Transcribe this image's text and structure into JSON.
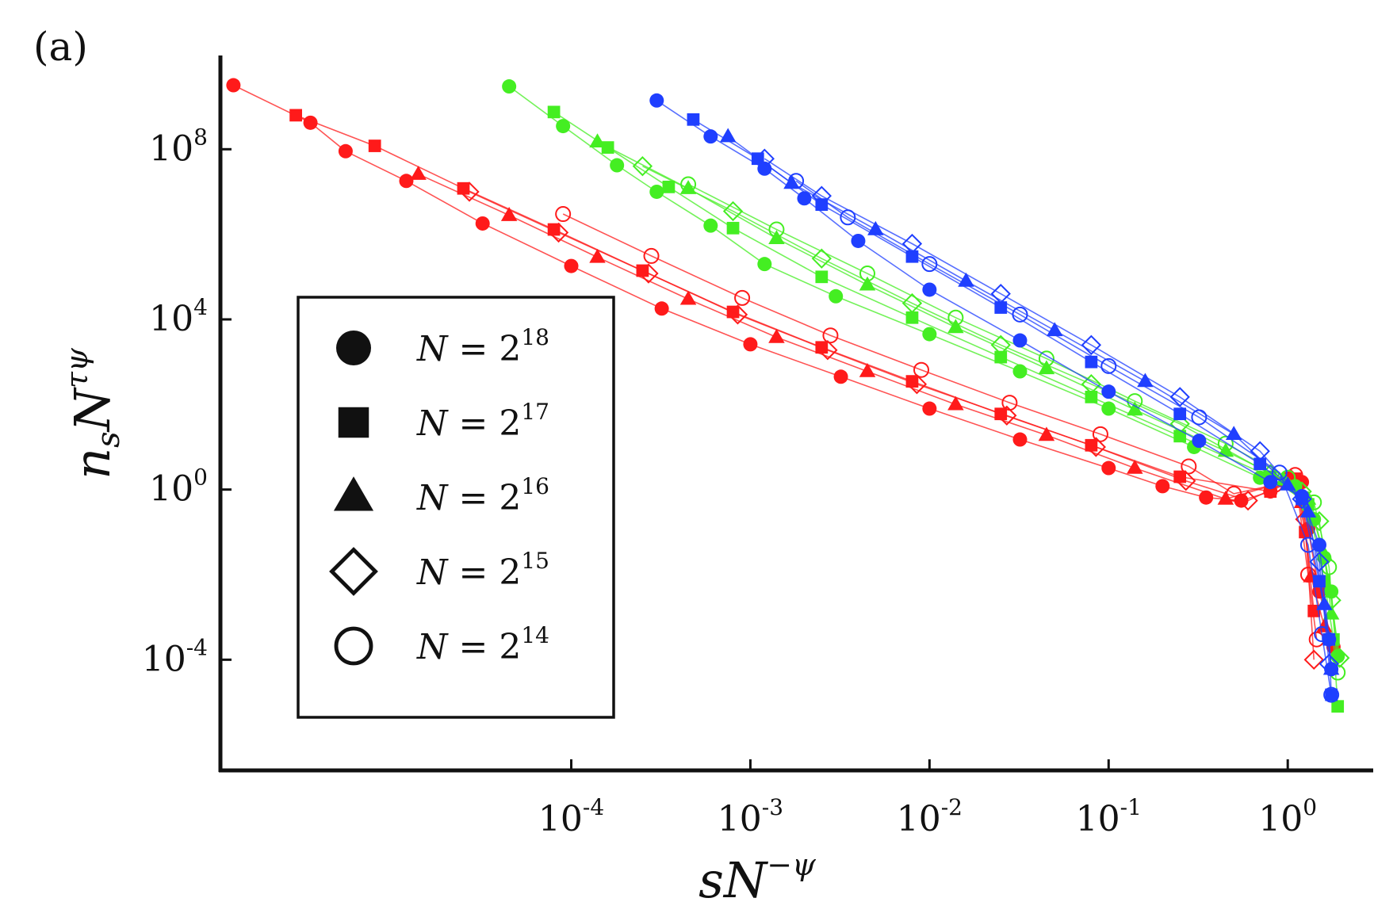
{
  "panel_label": "(a)",
  "chart_data": {
    "type": "scatter",
    "xscale": "log",
    "yscale": "log",
    "xlabel": {
      "base": "sN",
      "sup": "−ψ"
    },
    "ylabel": {
      "base": "n",
      "sub": "s",
      "mid": "N",
      "sup": "τψ"
    },
    "xlim": [
      1.1e-06,
      3.0
    ],
    "ylim": [
      2.5e-07,
      16000000000.0
    ],
    "x_ticks": [
      {
        "value": 0.0001,
        "base": "10",
        "exp": "-4"
      },
      {
        "value": 0.001,
        "base": "10",
        "exp": "-3"
      },
      {
        "value": 0.01,
        "base": "10",
        "exp": "-2"
      },
      {
        "value": 0.1,
        "base": "10",
        "exp": "-1"
      },
      {
        "value": 1,
        "base": "10",
        "exp": "0"
      }
    ],
    "y_ticks": [
      {
        "value": 100000000,
        "base": "10",
        "exp": "8"
      },
      {
        "value": 10000,
        "base": "10",
        "exp": "4"
      },
      {
        "value": 1,
        "base": "10",
        "exp": "0"
      },
      {
        "value": 0.0001,
        "base": "10",
        "exp": "-4"
      }
    ],
    "legend": {
      "position": "lower-left",
      "entries": [
        {
          "marker": "circle-filled",
          "label": "N = 2",
          "exp": "18"
        },
        {
          "marker": "square-filled",
          "label": "N = 2",
          "exp": "17"
        },
        {
          "marker": "triangle-filled",
          "label": "N = 2",
          "exp": "16"
        },
        {
          "marker": "diamond-open",
          "label": "N = 2",
          "exp": "15"
        },
        {
          "marker": "circle-open",
          "label": "N = 2",
          "exp": "14"
        }
      ]
    },
    "series": [
      {
        "color": "#ff1a1a",
        "marker": "circle-filled",
        "points": [
          [
            1.3e-06,
            3200000000.0
          ],
          [
            3.5e-06,
            420000000.0
          ],
          [
            5.5e-06,
            90000000.0
          ],
          [
            1.2e-05,
            18000000.0
          ],
          [
            3.2e-05,
            1800000.0
          ],
          [
            0.0001,
            180000.0
          ],
          [
            0.00032,
            18000.0
          ],
          [
            0.001,
            2600
          ],
          [
            0.0032,
            450
          ],
          [
            0.01,
            80
          ],
          [
            0.032,
            15
          ],
          [
            0.1,
            3.2
          ],
          [
            0.2,
            1.2
          ],
          [
            0.35,
            0.65
          ],
          [
            0.55,
            0.55
          ],
          [
            0.8,
            0.9
          ],
          [
            1.0,
            1.8
          ],
          [
            1.2,
            1.5
          ],
          [
            1.3,
            0.12
          ],
          [
            1.5,
            0.004
          ],
          [
            1.8,
            0.0002
          ]
        ]
      },
      {
        "color": "#ff1a1a",
        "marker": "square-filled",
        "points": [
          [
            2.9e-06,
            630000000.0
          ],
          [
            8e-06,
            120000000.0
          ],
          [
            2.5e-05,
            12000000.0
          ],
          [
            8e-05,
            1300000.0
          ],
          [
            0.00025,
            140000.0
          ],
          [
            0.0008,
            15000.0
          ],
          [
            0.0025,
            2200
          ],
          [
            0.008,
            350
          ],
          [
            0.025,
            60
          ],
          [
            0.08,
            11
          ],
          [
            0.25,
            2.0
          ],
          [
            0.8,
            0.9
          ],
          [
            1.1,
            1.8
          ],
          [
            1.25,
            0.1
          ],
          [
            1.4,
            0.0014
          ]
        ]
      },
      {
        "color": "#ff1a1a",
        "marker": "triangle-filled",
        "points": [
          [
            1.4e-05,
            26000000.0
          ],
          [
            4.5e-05,
            2800000.0
          ],
          [
            0.00014,
            290000.0
          ],
          [
            0.00045,
            30000.0
          ],
          [
            0.0014,
            3800
          ],
          [
            0.0045,
            600
          ],
          [
            0.014,
            100
          ],
          [
            0.045,
            19
          ],
          [
            0.14,
            3.2
          ],
          [
            0.45,
            0.6
          ],
          [
            1.0,
            1.6
          ],
          [
            1.2,
            0.5
          ],
          [
            1.35,
            0.009
          ],
          [
            1.6,
            0.0006
          ]
        ]
      },
      {
        "color": "#ff1a1a",
        "marker": "diamond-open",
        "points": [
          [
            2.7e-05,
            10000000.0
          ],
          [
            8.5e-05,
            1100000.0
          ],
          [
            0.00027,
            120000.0
          ],
          [
            0.00085,
            13000.0
          ],
          [
            0.0027,
            1900
          ],
          [
            0.0085,
            300
          ],
          [
            0.027,
            55
          ],
          [
            0.085,
            10
          ],
          [
            0.27,
            1.6
          ],
          [
            0.6,
            0.55
          ],
          [
            1.05,
            1.7
          ],
          [
            1.25,
            0.2
          ],
          [
            1.4,
            0.0001
          ]
        ]
      },
      {
        "color": "#ff1a1a",
        "marker": "circle-open",
        "points": [
          [
            9e-05,
            3000000.0
          ],
          [
            0.00028,
            310000.0
          ],
          [
            0.0009,
            32000.0
          ],
          [
            0.0028,
            4200
          ],
          [
            0.009,
            650
          ],
          [
            0.028,
            110
          ],
          [
            0.09,
            20
          ],
          [
            0.28,
            3.5
          ],
          [
            0.5,
            0.8
          ],
          [
            0.85,
            1.3
          ],
          [
            1.1,
            2.2
          ],
          [
            1.3,
            0.01
          ],
          [
            1.45,
            0.0003
          ]
        ]
      },
      {
        "color": "#44ee22",
        "marker": "circle-filled",
        "points": [
          [
            4.5e-05,
            3000000000.0
          ],
          [
            9e-05,
            350000000.0
          ],
          [
            0.00018,
            42000000.0
          ],
          [
            0.0003,
            10000000.0
          ],
          [
            0.0006,
            1600000.0
          ],
          [
            0.0012,
            200000.0
          ],
          [
            0.003,
            35000.0
          ],
          [
            0.01,
            4500
          ],
          [
            0.032,
            600
          ],
          [
            0.1,
            80
          ],
          [
            0.3,
            10
          ],
          [
            0.7,
            1.9
          ],
          [
            1.1,
            1.2
          ],
          [
            1.4,
            0.2
          ],
          [
            1.6,
            0.025
          ],
          [
            1.75,
            0.004
          ],
          [
            1.9,
            0.00012
          ]
        ]
      },
      {
        "color": "#44ee22",
        "marker": "square-filled",
        "points": [
          [
            8e-05,
            750000000.0
          ],
          [
            0.00016,
            110000000.0
          ],
          [
            0.00035,
            13000000.0
          ],
          [
            0.0008,
            1400000.0
          ],
          [
            0.0025,
            100000.0
          ],
          [
            0.008,
            11000.0
          ],
          [
            0.025,
            1300
          ],
          [
            0.08,
            150
          ],
          [
            0.25,
            18
          ],
          [
            0.8,
            2.0
          ],
          [
            1.3,
            0.45
          ],
          [
            1.6,
            0.007
          ],
          [
            1.8,
            0.0003
          ],
          [
            1.9,
            8e-06
          ]
        ]
      },
      {
        "color": "#44ee22",
        "marker": "triangle-filled",
        "points": [
          [
            0.00014,
            150000000.0
          ],
          [
            0.00045,
            12000000.0
          ],
          [
            0.0014,
            800000.0
          ],
          [
            0.0045,
            65000.0
          ],
          [
            0.014,
            6500
          ],
          [
            0.045,
            700
          ],
          [
            0.14,
            75
          ],
          [
            0.45,
            8.0
          ],
          [
            0.95,
            1.7
          ],
          [
            1.3,
            0.6
          ],
          [
            1.6,
            0.03
          ],
          [
            1.75,
            0.0012
          ]
        ]
      },
      {
        "color": "#44ee22",
        "marker": "diamond-open",
        "points": [
          [
            0.00025,
            40000000.0
          ],
          [
            0.0008,
            3500000.0
          ],
          [
            0.0025,
            270000.0
          ],
          [
            0.008,
            24000.0
          ],
          [
            0.025,
            2500
          ],
          [
            0.08,
            300
          ],
          [
            0.25,
            35
          ],
          [
            0.8,
            2.3
          ],
          [
            1.2,
            0.9
          ],
          [
            1.5,
            0.18
          ],
          [
            1.75,
            0.0025
          ],
          [
            1.95,
            0.00011
          ]
        ]
      },
      {
        "color": "#44ee22",
        "marker": "circle-open",
        "points": [
          [
            0.00045,
            15000000.0
          ],
          [
            0.0014,
            1300000.0
          ],
          [
            0.0045,
            120000.0
          ],
          [
            0.014,
            11000.0
          ],
          [
            0.045,
            1200
          ],
          [
            0.14,
            120
          ],
          [
            0.45,
            12
          ],
          [
            1.0,
            1.9
          ],
          [
            1.4,
            0.5
          ],
          [
            1.7,
            0.015
          ],
          [
            1.9,
            5e-05
          ]
        ]
      },
      {
        "color": "#1f3fff",
        "marker": "circle-filled",
        "points": [
          [
            0.0003,
            1400000000.0
          ],
          [
            0.0006,
            200000000.0
          ],
          [
            0.0012,
            35000000.0
          ],
          [
            0.002,
            7000000.0
          ],
          [
            0.004,
            700000.0
          ],
          [
            0.01,
            50000.0
          ],
          [
            0.032,
            3200
          ],
          [
            0.1,
            200
          ],
          [
            0.32,
            14
          ],
          [
            0.8,
            1.5
          ],
          [
            1.2,
            0.7
          ],
          [
            1.5,
            0.05
          ],
          [
            1.7,
            0.0003
          ],
          [
            1.75,
            6e-05
          ]
        ]
      },
      {
        "color": "#1f3fff",
        "marker": "square-filled",
        "points": [
          [
            0.00048,
            500000000.0
          ],
          [
            0.0011,
            60000000.0
          ],
          [
            0.0025,
            5000000.0
          ],
          [
            0.008,
            300000.0
          ],
          [
            0.025,
            19000.0
          ],
          [
            0.08,
            1000
          ],
          [
            0.25,
            60
          ],
          [
            0.7,
            4.0
          ],
          [
            1.2,
            0.6
          ],
          [
            1.5,
            0.007
          ],
          [
            1.7,
            0.0003
          ],
          [
            1.75,
            1.5e-05
          ]
        ]
      },
      {
        "color": "#1f3fff",
        "marker": "triangle-filled",
        "points": [
          [
            0.00075,
            200000000.0
          ],
          [
            0.0017,
            16000000.0
          ],
          [
            0.005,
            1300000.0
          ],
          [
            0.016,
            80000.0
          ],
          [
            0.05,
            5500
          ],
          [
            0.16,
            350
          ],
          [
            0.5,
            20
          ],
          [
            1.0,
            1.3
          ],
          [
            1.3,
            0.3
          ],
          [
            1.6,
            0.002
          ],
          [
            1.75,
            6e-05
          ]
        ]
      },
      {
        "color": "#1f3fff",
        "marker": "diamond-open",
        "points": [
          [
            0.0012,
            60000000.0
          ],
          [
            0.0025,
            8000000.0
          ],
          [
            0.008,
            600000.0
          ],
          [
            0.025,
            40000.0
          ],
          [
            0.08,
            2500
          ],
          [
            0.25,
            150
          ],
          [
            0.7,
            8.0
          ],
          [
            1.2,
            0.6
          ],
          [
            1.5,
            0.02
          ],
          [
            1.7,
            8e-05
          ]
        ]
      },
      {
        "color": "#1f3fff",
        "marker": "circle-open",
        "points": [
          [
            0.0018,
            18000000.0
          ],
          [
            0.0035,
            2500000.0
          ],
          [
            0.01,
            200000.0
          ],
          [
            0.032,
            13000.0
          ],
          [
            0.1,
            800
          ],
          [
            0.32,
            50
          ],
          [
            0.9,
            2.5
          ],
          [
            1.3,
            0.05
          ],
          [
            1.55,
            0.0004
          ],
          [
            1.75,
            1.5e-05
          ]
        ]
      }
    ]
  }
}
